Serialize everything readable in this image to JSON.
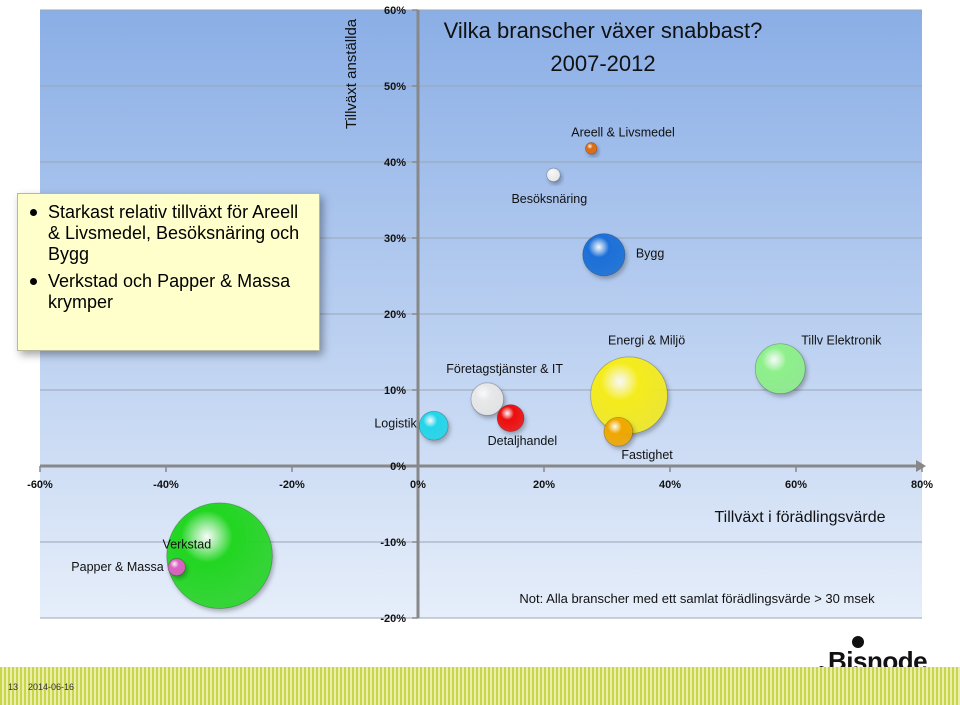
{
  "chart_data": {
    "type": "scatter",
    "title_line1": "Vilka branscher växer snabbast?",
    "title_line2": "2007-2012",
    "xlabel": "Tillväxt i förädlingsvärde",
    "ylabel": "Tillväxt anställda",
    "xlim": [
      -60,
      80
    ],
    "ylim": [
      -20,
      60
    ],
    "x_ticks": [
      "-60%",
      "-40%",
      "-20%",
      "0%",
      "20%",
      "40%",
      "60%",
      "80%"
    ],
    "y_ticks": [
      "-20%",
      "-10%",
      "0%",
      "10%",
      "20%",
      "30%",
      "40%",
      "50%",
      "60%"
    ],
    "note": "Not: Alla branscher med ett samlat förädlingsvärde > 30 msek",
    "points": [
      {
        "label": "Areell & Livsmedel",
        "x": 27.5,
        "y": 41.8,
        "size": 0.6,
        "color": "#e06b10"
      },
      {
        "label": "Besöksnäring",
        "x": 21.5,
        "y": 38.3,
        "size": 0.7,
        "color": "#f0f0f0"
      },
      {
        "label": "Bygg",
        "x": 29.5,
        "y": 27.8,
        "size": 2.2,
        "color": "#1a6fd8"
      },
      {
        "label": "Energi & Miljö",
        "x": 33.5,
        "y": 9.3,
        "size": 4.0,
        "color": "#f5ec1c"
      },
      {
        "label": "Tillv Elektronik",
        "x": 57.5,
        "y": 12.8,
        "size": 2.6,
        "color": "#8ef08a"
      },
      {
        "label": "Företagstjänster & IT",
        "x": 11.0,
        "y": 8.8,
        "size": 1.7,
        "color": "#e8e8e8"
      },
      {
        "label": "Detaljhandel",
        "x": 14.7,
        "y": 6.3,
        "size": 1.4,
        "color": "#ee1010"
      },
      {
        "label": "Logistik",
        "x": 2.5,
        "y": 5.3,
        "size": 1.5,
        "color": "#22d6ea"
      },
      {
        "label": "Fastighet",
        "x": 31.8,
        "y": 4.5,
        "size": 1.5,
        "color": "#f0a800"
      },
      {
        "label": "Verkstad",
        "x": -31.5,
        "y": -11.8,
        "size": 5.5,
        "color": "#22d622"
      },
      {
        "label": "Papper & Massa",
        "x": -38.3,
        "y": -13.3,
        "size": 0.9,
        "color": "#e060c8"
      }
    ]
  },
  "callout": {
    "bullet1": "Starkast relativ tillväxt för Areell & Livsmedel, Besöksnäring och Bygg",
    "bullet2": "Verkstad och Papper & Massa krymper"
  },
  "footer": {
    "page_number": "13",
    "date": "2014-06-16",
    "logo_text": "Bisnode"
  }
}
